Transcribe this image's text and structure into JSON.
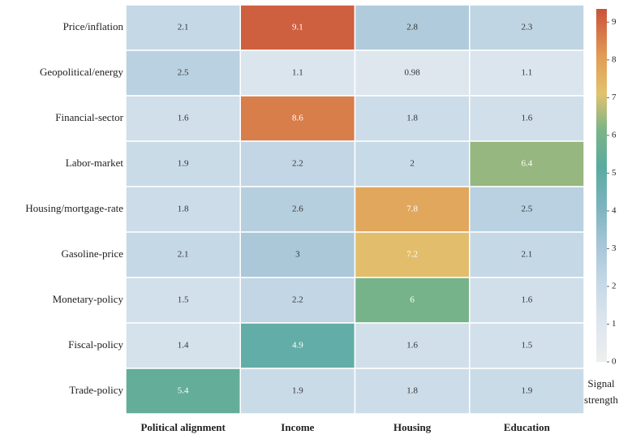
{
  "chart_data": {
    "type": "heatmap",
    "rows": [
      "Price/inflation",
      "Geopolitical/energy",
      "Financial-sector",
      "Labor-market",
      "Housing/mortgage-rate",
      "Gasoline-price",
      "Monetary-policy",
      "Fiscal-policy",
      "Trade-policy"
    ],
    "columns": [
      "Political alignment",
      "Income",
      "Housing",
      "Education"
    ],
    "values": [
      [
        2.1,
        9.1,
        2.8,
        2.3
      ],
      [
        2.5,
        1.1,
        0.98,
        1.1
      ],
      [
        1.6,
        8.6,
        1.8,
        1.6
      ],
      [
        1.9,
        2.2,
        2,
        6.4
      ],
      [
        1.8,
        2.6,
        7.8,
        2.5
      ],
      [
        2.1,
        3,
        7.2,
        2.1
      ],
      [
        1.5,
        2.2,
        6,
        1.6
      ],
      [
        1.4,
        4.9,
        1.6,
        1.5
      ],
      [
        5.4,
        1.9,
        1.8,
        1.9
      ]
    ],
    "colorbar_title": "Signal strength",
    "zlim": [
      0,
      9.35
    ],
    "zticks": [
      0,
      1,
      2,
      3,
      4,
      5,
      6,
      7,
      8,
      9
    ],
    "colorscale": [
      [
        0,
        "#eeeeee"
      ],
      [
        0.11,
        "#dde6ee"
      ],
      [
        0.22,
        "#c6d9e7"
      ],
      [
        0.33,
        "#a7c6d7"
      ],
      [
        0.45,
        "#78b2bb"
      ],
      [
        0.55,
        "#5aaba0"
      ],
      [
        0.66,
        "#7db486"
      ],
      [
        0.76,
        "#e2c26e"
      ],
      [
        0.87,
        "#e19a55"
      ],
      [
        1,
        "#c9513a"
      ]
    ]
  }
}
